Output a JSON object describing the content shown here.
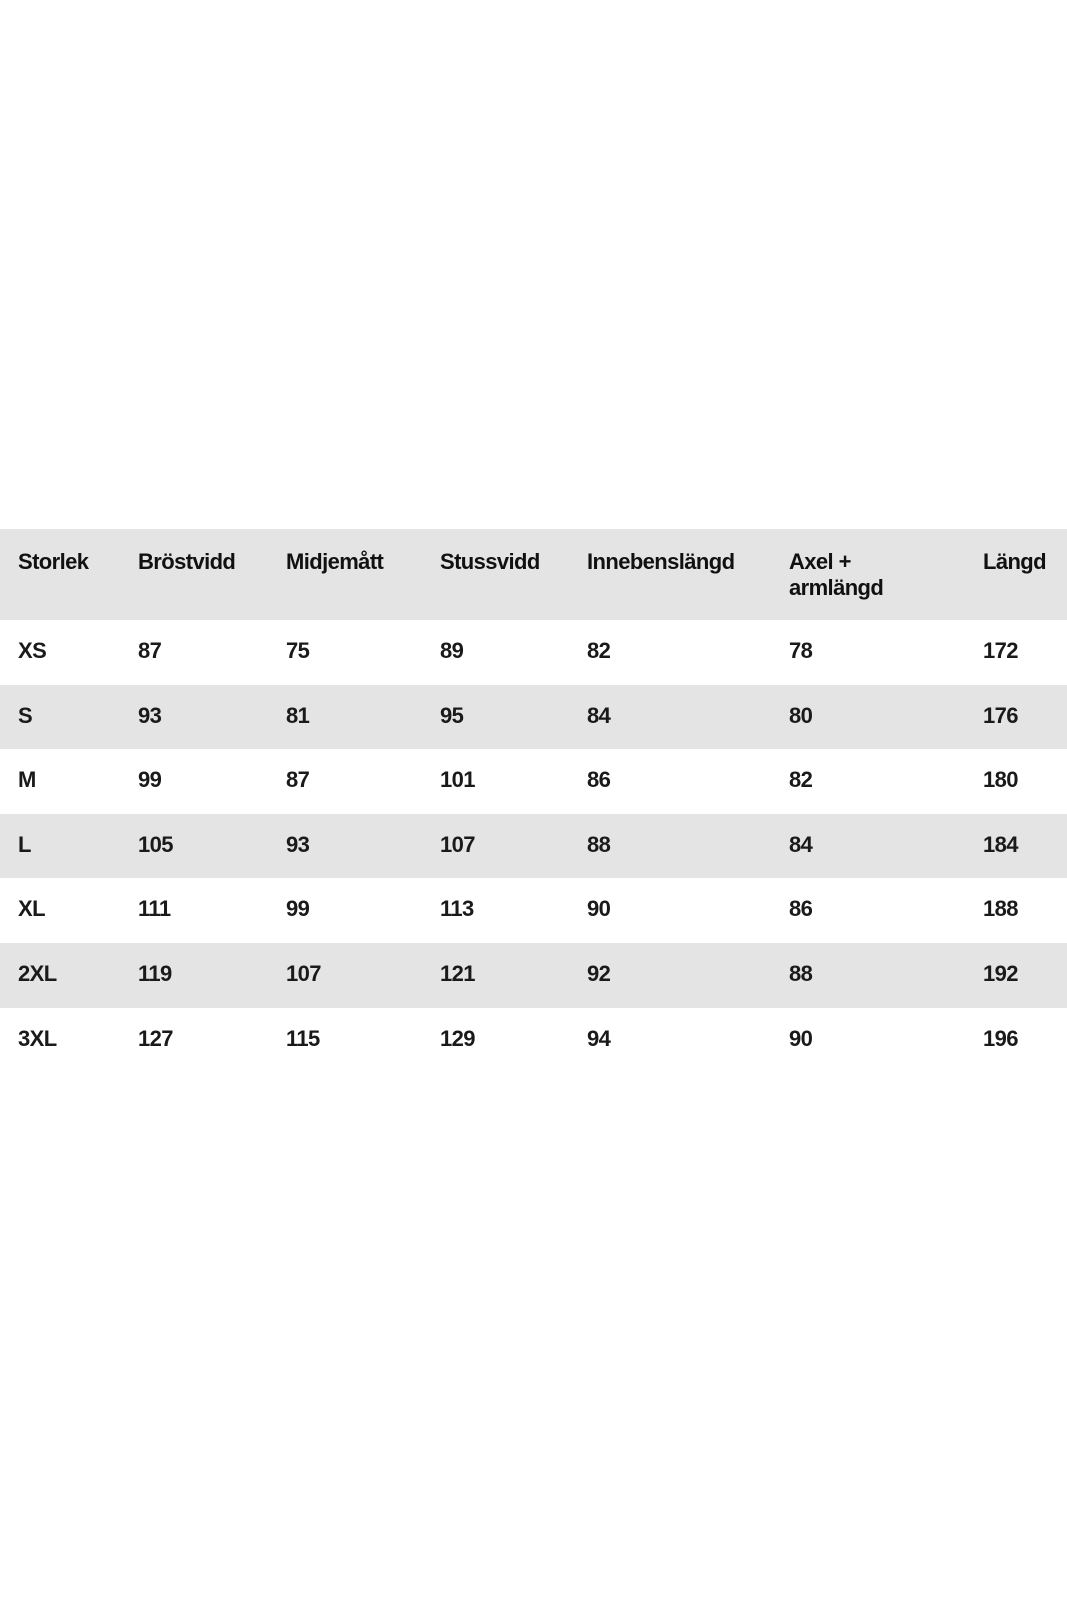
{
  "table": {
    "headers": [
      "Storlek",
      "Bröstvidd",
      "Midjemått",
      "Stussvidd",
      "Innebenslängd",
      "Axel + armlängd",
      "Längd"
    ],
    "rows": [
      [
        "XS",
        "87",
        "75",
        "89",
        "82",
        "78",
        "172"
      ],
      [
        "S",
        "93",
        "81",
        "95",
        "84",
        "80",
        "176"
      ],
      [
        "M",
        "99",
        "87",
        "101",
        "86",
        "82",
        "180"
      ],
      [
        "L",
        "105",
        "93",
        "107",
        "88",
        "84",
        "184"
      ],
      [
        "XL",
        "111",
        "99",
        "113",
        "90",
        "86",
        "188"
      ],
      [
        "2XL",
        "119",
        "107",
        "121",
        "92",
        "88",
        "192"
      ],
      [
        "3XL",
        "127",
        "115",
        "129",
        "94",
        "90",
        "196"
      ]
    ]
  },
  "colors": {
    "header_bg": "#e4e4e4",
    "stripe_bg": "#e4e4e4",
    "row_bg": "#ffffff",
    "text": "#111111"
  }
}
